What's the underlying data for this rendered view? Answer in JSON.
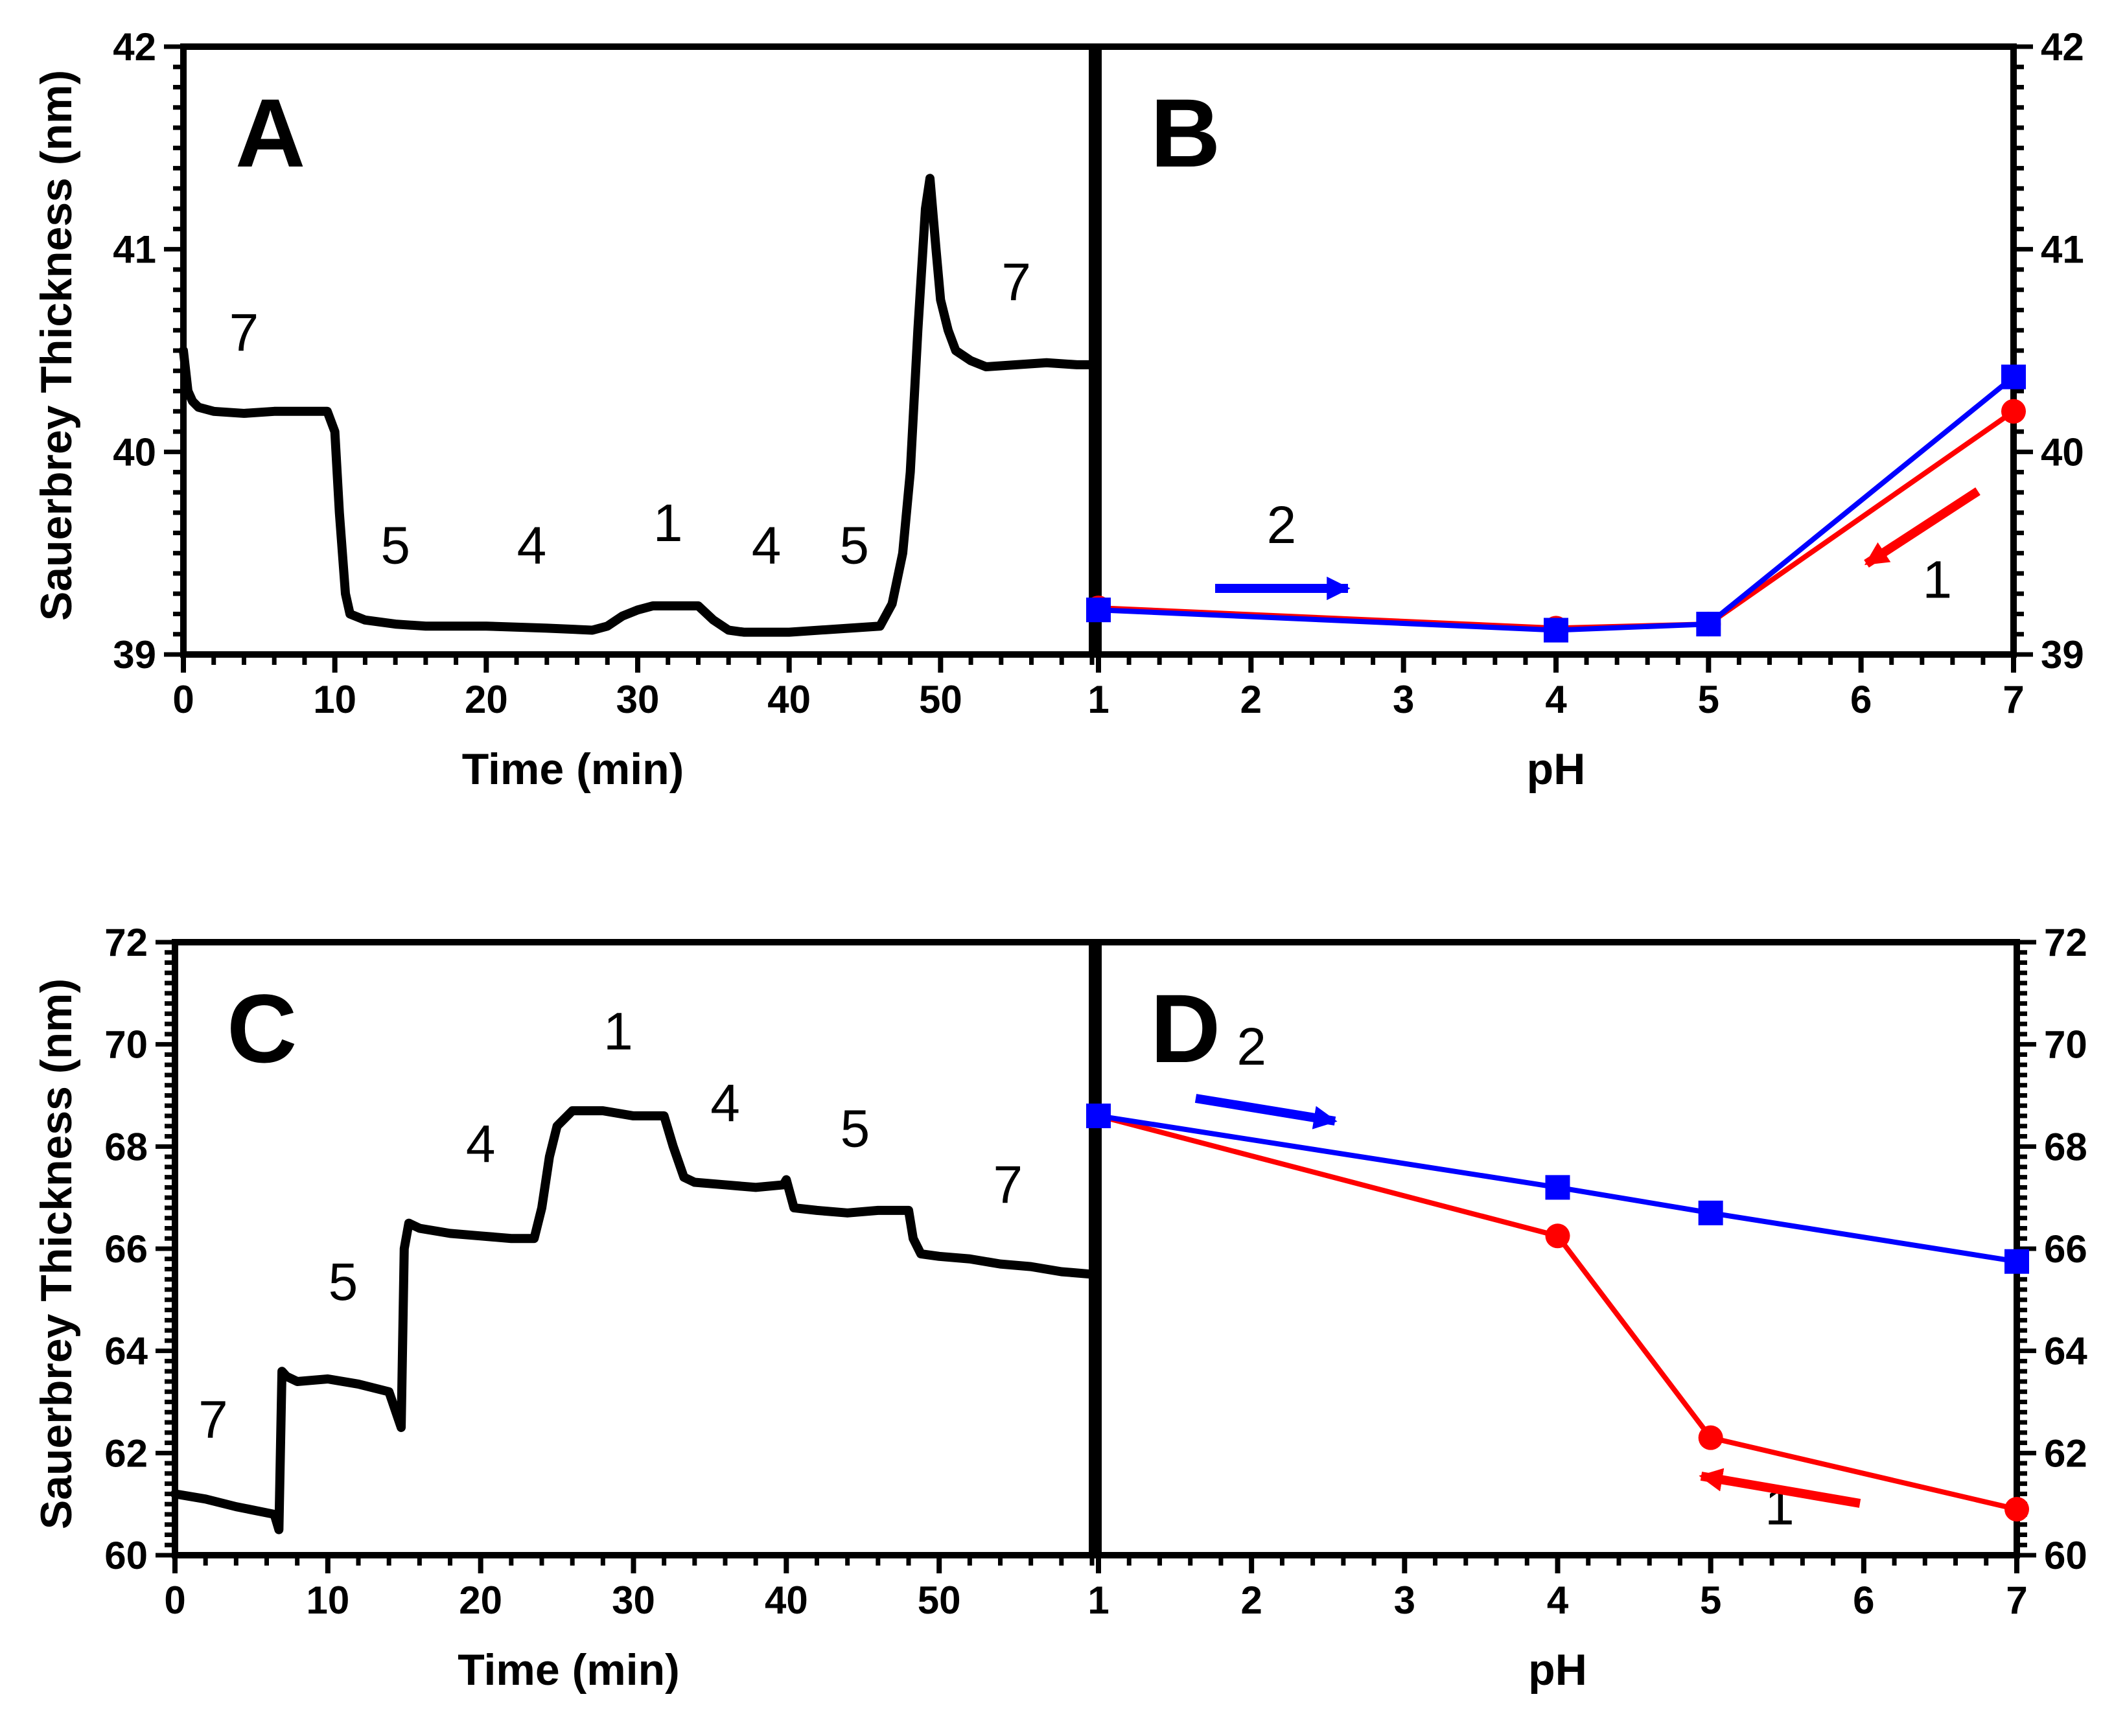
{
  "figure": {
    "ylabel": "Sauerbrey Thickness (nm)"
  },
  "chart_data": [
    {
      "id": "A",
      "type": "line",
      "panel_label": "A",
      "xlabel": "Time (min)",
      "ylabel": "Sauerbrey Thickness (nm)",
      "xlim": [
        0,
        60
      ],
      "ylim": [
        39,
        42
      ],
      "xticks": [
        "0",
        "10",
        "20",
        "30",
        "40",
        "50"
      ],
      "yticks": [
        "39",
        "40",
        "41",
        "42"
      ],
      "series": [
        {
          "name": "thickness",
          "color": "#000000",
          "x": [
            0,
            0.3,
            0.6,
            1,
            2,
            4,
            6,
            8,
            9.5,
            10,
            10.3,
            10.7,
            11,
            12,
            14,
            16,
            20,
            24,
            27,
            28,
            29,
            30,
            31,
            34,
            35,
            36,
            37,
            40,
            44,
            46,
            46.8,
            47.5,
            48,
            48.5,
            49,
            49.3,
            49.7,
            50,
            50.5,
            51,
            52,
            53,
            55,
            57,
            59,
            60
          ],
          "y": [
            40.5,
            40.3,
            40.25,
            40.22,
            40.2,
            40.19,
            40.2,
            40.2,
            40.2,
            40.1,
            39.7,
            39.3,
            39.2,
            39.17,
            39.15,
            39.14,
            39.14,
            39.13,
            39.12,
            39.14,
            39.19,
            39.22,
            39.24,
            39.24,
            39.17,
            39.12,
            39.11,
            39.11,
            39.13,
            39.14,
            39.25,
            39.5,
            39.9,
            40.6,
            41.2,
            41.35,
            41.0,
            40.75,
            40.6,
            40.5,
            40.45,
            40.42,
            40.43,
            40.44,
            40.43,
            40.43
          ]
        }
      ],
      "annotations": [
        {
          "text": "7",
          "x": 4,
          "y": 40.5
        },
        {
          "text": "5",
          "x": 14,
          "y": 39.45
        },
        {
          "text": "4",
          "x": 23,
          "y": 39.45
        },
        {
          "text": "1",
          "x": 32,
          "y": 39.56
        },
        {
          "text": "4",
          "x": 38.5,
          "y": 39.45
        },
        {
          "text": "5",
          "x": 44.3,
          "y": 39.45
        },
        {
          "text": "7",
          "x": 55,
          "y": 40.75
        }
      ]
    },
    {
      "id": "B",
      "type": "line",
      "panel_label": "B",
      "xlabel": "pH",
      "xlim": [
        1,
        7
      ],
      "ylim": [
        39,
        42
      ],
      "xticks": [
        "1",
        "2",
        "3",
        "4",
        "5",
        "6",
        "7"
      ],
      "yticks": [
        "39",
        "40",
        "41",
        "42"
      ],
      "series": [
        {
          "name": "1",
          "color": "#ff0000",
          "marker": "circle",
          "x": [
            7,
            5,
            4,
            1
          ],
          "y": [
            40.2,
            39.15,
            39.13,
            39.23
          ]
        },
        {
          "name": "2",
          "color": "#0000ff",
          "marker": "square",
          "x": [
            1,
            4,
            5,
            7
          ],
          "y": [
            39.22,
            39.12,
            39.15,
            40.37
          ]
        }
      ],
      "annotations": [
        {
          "text": "2",
          "x": 2.2,
          "y": 39.55
        },
        {
          "text": "1",
          "x": 6.5,
          "y": 39.28
        }
      ]
    },
    {
      "id": "C",
      "type": "line",
      "panel_label": "C",
      "xlabel": "Time (min)",
      "ylabel": "Sauerbrey Thickness (nm)",
      "xlim": [
        0,
        60
      ],
      "ylim": [
        60,
        72
      ],
      "xticks": [
        "0",
        "10",
        "20",
        "30",
        "40",
        "50"
      ],
      "yticks": [
        "60",
        "62",
        "64",
        "66",
        "68",
        "70",
        "72"
      ],
      "series": [
        {
          "name": "thickness",
          "color": "#000000",
          "x": [
            0,
            2,
            4,
            6.5,
            6.8,
            7.0,
            7.3,
            8,
            10,
            12,
            14,
            14.8,
            15.0,
            15.3,
            16,
            18,
            20,
            22,
            23.5,
            24.0,
            24.5,
            25,
            26,
            28,
            30,
            32,
            32.6,
            33.3,
            34,
            36,
            38,
            39.8,
            40.0,
            40.5,
            42,
            44,
            46,
            48,
            48.3,
            48.8,
            50,
            52,
            54,
            56,
            58,
            60
          ],
          "y": [
            61.2,
            61.1,
            60.95,
            60.8,
            60.5,
            63.6,
            63.5,
            63.4,
            63.45,
            63.35,
            63.2,
            62.5,
            66.0,
            66.5,
            66.4,
            66.3,
            66.25,
            66.2,
            66.2,
            66.8,
            67.8,
            68.4,
            68.7,
            68.7,
            68.6,
            68.6,
            68.0,
            67.4,
            67.3,
            67.25,
            67.2,
            67.25,
            67.35,
            66.8,
            66.75,
            66.7,
            66.75,
            66.75,
            66.2,
            65.9,
            65.85,
            65.8,
            65.7,
            65.65,
            65.55,
            65.5
          ]
        }
      ],
      "annotations": [
        {
          "text": "7",
          "x": 2.5,
          "y": 62.3
        },
        {
          "text": "5",
          "x": 11,
          "y": 65.0
        },
        {
          "text": "4",
          "x": 20,
          "y": 67.7
        },
        {
          "text": "1",
          "x": 29,
          "y": 69.9
        },
        {
          "text": "4",
          "x": 36,
          "y": 68.5
        },
        {
          "text": "5",
          "x": 44.5,
          "y": 68.0
        },
        {
          "text": "7",
          "x": 54.5,
          "y": 66.9
        }
      ]
    },
    {
      "id": "D",
      "type": "line",
      "panel_label": "D",
      "xlabel": "pH",
      "xlim": [
        1,
        7
      ],
      "ylim": [
        60,
        72
      ],
      "xticks": [
        "1",
        "2",
        "3",
        "4",
        "5",
        "6",
        "7"
      ],
      "yticks": [
        "60",
        "62",
        "64",
        "66",
        "68",
        "70",
        "72"
      ],
      "series": [
        {
          "name": "1",
          "color": "#ff0000",
          "marker": "circle",
          "x": [
            7,
            5,
            4,
            1
          ],
          "y": [
            60.9,
            62.3,
            66.25,
            68.6
          ]
        },
        {
          "name": "2",
          "color": "#0000ff",
          "marker": "square",
          "x": [
            1,
            4,
            5,
            7
          ],
          "y": [
            68.6,
            67.2,
            66.7,
            65.75
          ]
        }
      ],
      "annotations": [
        {
          "text": "2",
          "x": 2.0,
          "y": 69.6
        },
        {
          "text": "1",
          "x": 5.45,
          "y": 60.6
        }
      ]
    }
  ]
}
